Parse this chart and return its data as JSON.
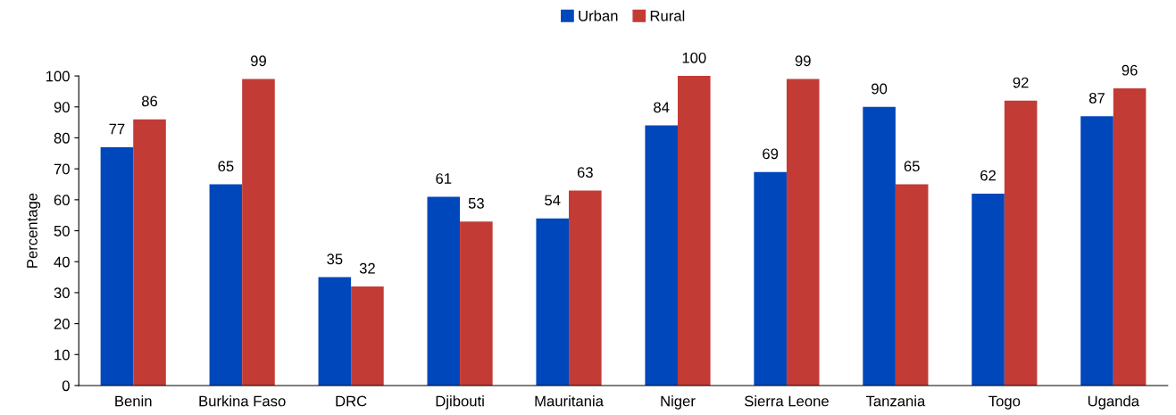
{
  "chart_data": {
    "type": "bar",
    "ylabel": "Percentage",
    "categories": [
      "Benin",
      "Burkina Faso",
      "DRC",
      "Djibouti",
      "Mauritania",
      "Niger",
      "Sierra Leone",
      "Tanzania",
      "Togo",
      "Uganda"
    ],
    "series": [
      {
        "name": "Urban",
        "color": "#0047bb",
        "values": [
          77,
          65,
          35,
          61,
          54,
          84,
          69,
          90,
          62,
          87
        ]
      },
      {
        "name": "Rural",
        "color": "#c33b35",
        "values": [
          86,
          99,
          32,
          53,
          63,
          100,
          99,
          65,
          92,
          96
        ]
      }
    ],
    "ylim": [
      0,
      100
    ],
    "yticks": [
      0,
      10,
      20,
      30,
      40,
      50,
      60,
      70,
      80,
      90,
      100
    ],
    "data_labels": true,
    "grid": false,
    "legend": "top"
  }
}
